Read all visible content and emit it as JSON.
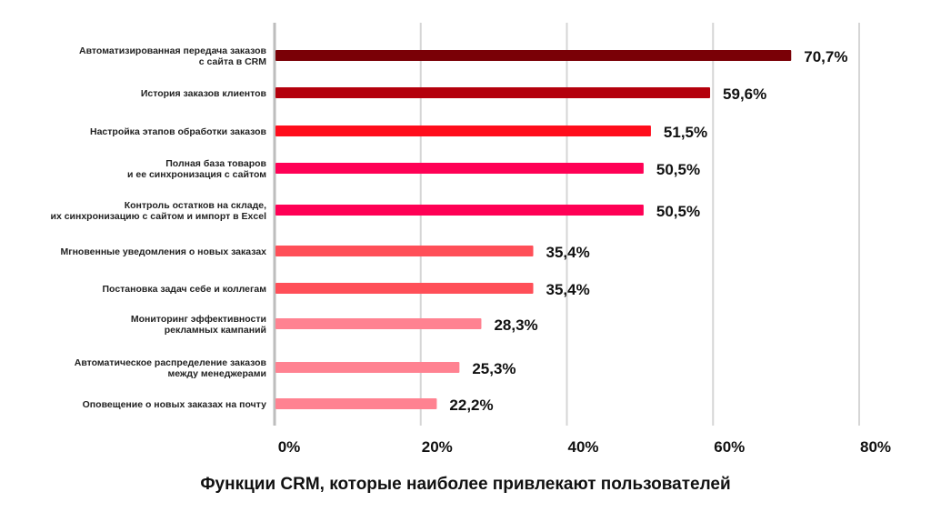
{
  "chart_data": {
    "type": "bar",
    "orientation": "horizontal",
    "title": "Функции CRM, которые наиболее привлекают пользователей",
    "xlabel": "",
    "ylabel": "",
    "xlim": [
      0,
      80
    ],
    "grid": true,
    "ticks": [
      "0%",
      "20%",
      "40%",
      "60%",
      "80%"
    ],
    "tick_values": [
      0,
      20,
      40,
      60,
      80
    ],
    "categories": [
      [
        "Автоматизированная передача заказов",
        "с сайта в CRM"
      ],
      [
        "История заказов клиентов"
      ],
      [
        "Настройка этапов обработки заказов"
      ],
      [
        "Полная база товаров",
        "и ее синхронизация с сайтом"
      ],
      [
        "Контроль остатков на складе,",
        "их синхронизацию с сайтом и импорт в Excel"
      ],
      [
        "Мгновенные уведомления о новых заказах"
      ],
      [
        "Постановка задач себе и коллегам"
      ],
      [
        "Мониторинг эффективности",
        "рекламных кампаний"
      ],
      [
        "Автоматическое распределение заказов",
        "между менеджерами"
      ],
      [
        "Оповещение о новых заказах на почту"
      ]
    ],
    "values": [
      70.7,
      59.6,
      51.5,
      50.5,
      50.5,
      35.4,
      35.4,
      28.3,
      25.3,
      22.2
    ],
    "value_labels": [
      "70,7%",
      "59,6%",
      "51,5%",
      "50,5%",
      "50,5%",
      "35,4%",
      "35,4%",
      "28,3%",
      "25,3%",
      "22,2%"
    ],
    "colors": [
      "#7a0006",
      "#b4000c",
      "#ff0d1c",
      "#ff0055",
      "#ff0055",
      "#ff4f58",
      "#ff4f58",
      "#ff8291",
      "#ff8291",
      "#ff8291"
    ]
  }
}
